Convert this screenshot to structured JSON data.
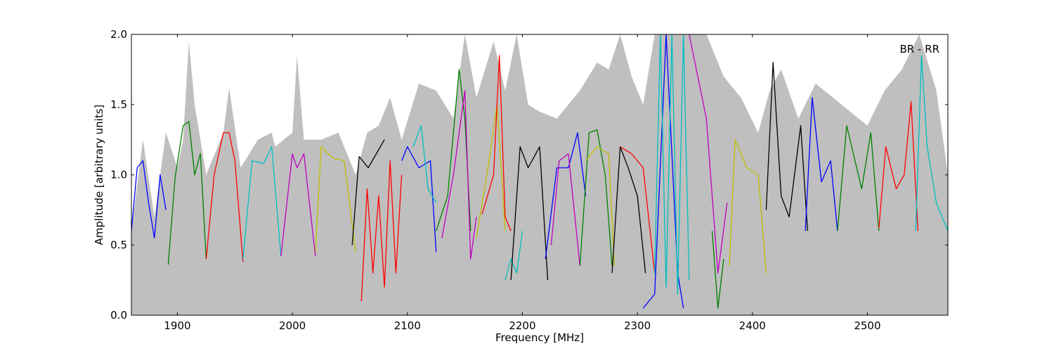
{
  "chart_data": {
    "type": "line",
    "title": "",
    "xlabel": "Frequency [MHz]",
    "ylabel": "Amplitude [arbitrary units]",
    "annotation": "BR - RR",
    "legend_position": "top-right",
    "grid": false,
    "xlim": [
      1860,
      2570
    ],
    "ylim": [
      0.0,
      2.0
    ],
    "xticks": [
      1900,
      2000,
      2100,
      2200,
      2300,
      2400,
      2500
    ],
    "yticks": [
      0.0,
      0.5,
      1.0,
      1.5,
      2.0
    ],
    "xtick_labels": [
      "1900",
      "2000",
      "2100",
      "2200",
      "2300",
      "2400",
      "2500"
    ],
    "ytick_labels": [
      "0.0",
      "0.5",
      "1.0",
      "1.5",
      "2.0"
    ],
    "background": {
      "color": "#bfbfbf",
      "x": [
        1860,
        1870,
        1880,
        1890,
        1900,
        1905,
        1910,
        1915,
        1925,
        1940,
        1945,
        1955,
        1970,
        1982,
        1985,
        2000,
        2004,
        2010,
        2025,
        2040,
        2055,
        2065,
        2075,
        2085,
        2095,
        2110,
        2125,
        2140,
        2150,
        2160,
        2175,
        2185,
        2195,
        2205,
        2215,
        2230,
        2250,
        2265,
        2275,
        2285,
        2295,
        2305,
        2315,
        2325,
        2335,
        2345,
        2360,
        2375,
        2390,
        2405,
        2415,
        2425,
        2440,
        2455,
        2470,
        2485,
        2500,
        2515,
        2530,
        2545,
        2560,
        2570
      ],
      "y": [
        0.6,
        1.25,
        0.7,
        1.3,
        1.05,
        1.25,
        1.95,
        1.5,
        1.0,
        1.3,
        1.62,
        1.05,
        1.25,
        1.3,
        1.2,
        1.3,
        1.85,
        1.25,
        1.25,
        1.3,
        1.0,
        1.3,
        1.35,
        1.55,
        1.25,
        1.65,
        1.6,
        1.4,
        2.0,
        1.55,
        1.95,
        1.6,
        2.0,
        1.5,
        1.45,
        1.4,
        1.6,
        1.8,
        1.75,
        2.0,
        1.7,
        1.5,
        2.0,
        2.0,
        2.0,
        2.0,
        2.0,
        1.7,
        1.55,
        1.3,
        1.6,
        1.75,
        1.4,
        1.65,
        1.55,
        1.45,
        1.35,
        1.6,
        1.75,
        2.0,
        1.6,
        1.0
      ]
    },
    "series": [
      {
        "color": "#0000ff",
        "x": [
          1860,
          1865,
          1870,
          1875,
          1880,
          1885,
          1890
        ],
        "y": [
          0.6,
          1.05,
          1.1,
          0.8,
          0.55,
          1.0,
          0.75
        ]
      },
      {
        "color": "#008000",
        "x": [
          1892,
          1898,
          1905,
          1910,
          1915,
          1920,
          1925
        ],
        "y": [
          0.36,
          0.98,
          1.35,
          1.38,
          1.0,
          1.15,
          0.4
        ]
      },
      {
        "color": "#ff0000",
        "x": [
          1925,
          1932,
          1940,
          1945,
          1950,
          1957
        ],
        "y": [
          0.4,
          1.0,
          1.3,
          1.3,
          1.1,
          0.38
        ]
      },
      {
        "color": "#00bfbf",
        "x": [
          1957,
          1965,
          1975,
          1982,
          1990
        ],
        "y": [
          0.4,
          1.1,
          1.08,
          1.2,
          0.42
        ]
      },
      {
        "color": "#bf00bf",
        "x": [
          1990,
          2000,
          2004,
          2010,
          2020
        ],
        "y": [
          0.42,
          1.15,
          1.05,
          1.15,
          0.42
        ]
      },
      {
        "color": "#bfbf00",
        "x": [
          2020,
          2025,
          2035,
          2045,
          2055
        ],
        "y": [
          0.45,
          1.2,
          1.12,
          1.1,
          0.45
        ]
      },
      {
        "color": "#000000",
        "x": [
          2052,
          2058,
          2066,
          2073,
          2080
        ],
        "y": [
          0.5,
          1.13,
          1.05,
          1.15,
          1.25
        ]
      },
      {
        "color": "#ff0000",
        "x": [
          2060,
          2065,
          2070,
          2075,
          2080,
          2085,
          2090,
          2095
        ],
        "y": [
          0.1,
          0.9,
          0.3,
          0.85,
          0.2,
          1.1,
          0.3,
          1.0
        ]
      },
      {
        "color": "#0000ff",
        "x": [
          2095,
          2100,
          2110,
          2120,
          2125
        ],
        "y": [
          1.1,
          1.2,
          1.05,
          1.1,
          0.45
        ]
      },
      {
        "color": "#00bfbf",
        "x": [
          2105,
          2112,
          2118,
          2125
        ],
        "y": [
          1.2,
          1.35,
          0.9,
          0.8
        ]
      },
      {
        "color": "#008000",
        "x": [
          2125,
          2135,
          2145,
          2150,
          2155
        ],
        "y": [
          0.6,
          0.85,
          1.75,
          1.4,
          0.6
        ]
      },
      {
        "color": "#bf00bf",
        "x": [
          2130,
          2140,
          2150,
          2155,
          2160
        ],
        "y": [
          0.55,
          1.0,
          1.6,
          0.4,
          0.7
        ]
      },
      {
        "color": "#bfbf00",
        "x": [
          2160,
          2170,
          2178,
          2185
        ],
        "y": [
          0.55,
          1.05,
          1.5,
          0.6
        ]
      },
      {
        "color": "#ff0000",
        "x": [
          2165,
          2175,
          2180,
          2185,
          2190
        ],
        "y": [
          0.72,
          1.0,
          1.85,
          0.7,
          0.6
        ]
      },
      {
        "color": "#00bfbf",
        "x": [
          2185,
          2190,
          2195,
          2200
        ],
        "y": [
          0.25,
          0.4,
          0.3,
          0.6
        ]
      },
      {
        "color": "#000000",
        "x": [
          2190,
          2198,
          2205,
          2215,
          2222
        ],
        "y": [
          0.25,
          1.2,
          1.05,
          1.2,
          0.25
        ]
      },
      {
        "color": "#0000ff",
        "x": [
          2220,
          2230,
          2240,
          2248,
          2255
        ],
        "y": [
          0.4,
          1.05,
          1.05,
          1.3,
          0.85
        ]
      },
      {
        "color": "#bf00bf",
        "x": [
          2225,
          2232,
          2240,
          2250
        ],
        "y": [
          0.5,
          1.1,
          1.15,
          0.35
        ]
      },
      {
        "color": "#008000",
        "x": [
          2250,
          2258,
          2265,
          2272,
          2278
        ],
        "y": [
          0.35,
          1.3,
          1.32,
          1.0,
          0.35
        ]
      },
      {
        "color": "#bfbf00",
        "x": [
          2255,
          2265,
          2275,
          2280
        ],
        "y": [
          1.1,
          1.2,
          1.15,
          0.35
        ]
      },
      {
        "color": "#000000",
        "x": [
          2278,
          2285,
          2292,
          2300,
          2307
        ],
        "y": [
          0.3,
          1.2,
          1.05,
          0.85,
          0.3
        ]
      },
      {
        "color": "#ff0000",
        "x": [
          2285,
          2295,
          2305,
          2315
        ],
        "y": [
          1.2,
          1.15,
          1.05,
          0.3
        ]
      },
      {
        "color": "#0000ff",
        "x": [
          2305,
          2315,
          2325,
          2335,
          2340
        ],
        "y": [
          0.05,
          0.15,
          2.0,
          0.3,
          0.05
        ]
      },
      {
        "color": "#00bfbf",
        "x": [
          2315,
          2320,
          2325,
          2330,
          2335,
          2340,
          2345
        ],
        "y": [
          0.3,
          2.0,
          0.2,
          2.0,
          0.15,
          2.0,
          0.25
        ]
      },
      {
        "color": "#bf00bf",
        "x": [
          2345,
          2360,
          2370,
          2378
        ],
        "y": [
          2.0,
          1.4,
          0.3,
          0.8
        ]
      },
      {
        "color": "#008000",
        "x": [
          2365,
          2370,
          2375
        ],
        "y": [
          0.6,
          0.05,
          0.4
        ]
      },
      {
        "color": "#bfbf00",
        "x": [
          2380,
          2385,
          2395,
          2405,
          2412
        ],
        "y": [
          0.35,
          1.25,
          1.05,
          1.0,
          0.3
        ]
      },
      {
        "color": "#000000",
        "x": [
          2412,
          2418,
          2425,
          2432,
          2442,
          2448
        ],
        "y": [
          0.75,
          1.8,
          0.85,
          0.7,
          1.35,
          0.6
        ]
      },
      {
        "color": "#0000ff",
        "x": [
          2446,
          2452,
          2460,
          2468,
          2474
        ],
        "y": [
          0.6,
          1.55,
          0.95,
          1.1,
          0.6
        ]
      },
      {
        "color": "#008000",
        "x": [
          2474,
          2482,
          2495,
          2503,
          2510
        ],
        "y": [
          0.6,
          1.35,
          0.9,
          1.3,
          0.6
        ]
      },
      {
        "color": "#ff0000",
        "x": [
          2510,
          2516,
          2525,
          2532,
          2538,
          2544
        ],
        "y": [
          0.62,
          1.2,
          0.9,
          1.0,
          1.52,
          0.6
        ]
      },
      {
        "color": "#00bfbf",
        "x": [
          2542,
          2547,
          2552,
          2560,
          2570
        ],
        "y": [
          0.6,
          1.85,
          1.2,
          0.8,
          0.6
        ]
      }
    ]
  }
}
